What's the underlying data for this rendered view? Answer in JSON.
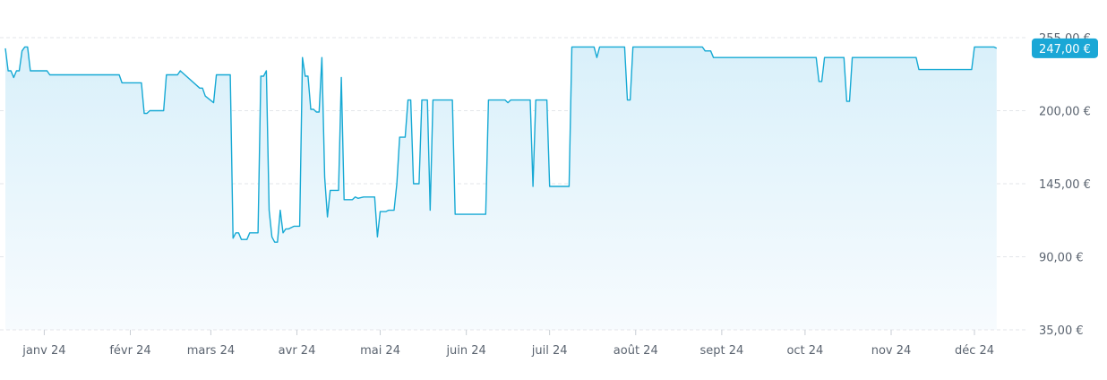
{
  "chart_data": {
    "type": "area",
    "currency": "€",
    "ylim": [
      35,
      255
    ],
    "yticks": [
      {
        "value": 255,
        "label": "255,00 €"
      },
      {
        "value": 200,
        "label": "200,00 €"
      },
      {
        "value": 145,
        "label": "145,00 €"
      },
      {
        "value": 90,
        "label": "90,00 €"
      },
      {
        "value": 35,
        "label": "35,00 €"
      }
    ],
    "xlim": [
      "2023-12-18",
      "2024-12-21"
    ],
    "xticks": [
      {
        "date": "2024-01-01",
        "label": "janv 24"
      },
      {
        "date": "2024-02-01",
        "label": "févr 24"
      },
      {
        "date": "2024-03-01",
        "label": "mars 24"
      },
      {
        "date": "2024-04-01",
        "label": "avr 24"
      },
      {
        "date": "2024-05-01",
        "label": "mai 24"
      },
      {
        "date": "2024-06-01",
        "label": "juin 24"
      },
      {
        "date": "2024-07-01",
        "label": "juil 24"
      },
      {
        "date": "2024-08-01",
        "label": "août 24"
      },
      {
        "date": "2024-09-01",
        "label": "sept 24"
      },
      {
        "date": "2024-10-01",
        "label": "oct 24"
      },
      {
        "date": "2024-11-01",
        "label": "nov 24"
      },
      {
        "date": "2024-12-01",
        "label": "déc 24"
      }
    ],
    "current_value_label": "247,00 €",
    "grid": true,
    "colors": {
      "line": "#16a9d4",
      "fill_top": "#d9f0fa",
      "fill_bottom": "#f7fbfe",
      "badge": "#1aa7d6",
      "grid": "#e3e6ea"
    },
    "series": [
      {
        "points": [
          [
            "2023-12-18",
            247
          ],
          [
            "2023-12-19",
            230
          ],
          [
            "2023-12-20",
            230
          ],
          [
            "2023-12-21",
            225
          ],
          [
            "2023-12-22",
            230
          ],
          [
            "2023-12-23",
            230
          ],
          [
            "2023-12-24",
            245
          ],
          [
            "2023-12-25",
            248
          ],
          [
            "2023-12-26",
            248
          ],
          [
            "2023-12-27",
            230
          ],
          [
            "2023-12-30",
            230
          ],
          [
            "2024-01-02",
            230
          ],
          [
            "2024-01-03",
            227
          ],
          [
            "2024-01-09",
            227
          ],
          [
            "2024-01-15",
            227
          ],
          [
            "2024-01-21",
            227
          ],
          [
            "2024-01-28",
            227
          ],
          [
            "2024-01-29",
            221
          ],
          [
            "2024-02-05",
            221
          ],
          [
            "2024-02-06",
            198
          ],
          [
            "2024-02-07",
            198
          ],
          [
            "2024-02-08",
            200
          ],
          [
            "2024-02-13",
            200
          ],
          [
            "2024-02-14",
            227
          ],
          [
            "2024-02-18",
            227
          ],
          [
            "2024-02-19",
            230
          ],
          [
            "2024-02-26",
            217
          ],
          [
            "2024-02-27",
            217
          ],
          [
            "2024-02-28",
            211
          ],
          [
            "2024-03-02",
            206
          ],
          [
            "2024-03-03",
            227
          ],
          [
            "2024-03-08",
            227
          ],
          [
            "2024-03-09",
            104
          ],
          [
            "2024-03-10",
            108
          ],
          [
            "2024-03-11",
            108
          ],
          [
            "2024-03-12",
            103
          ],
          [
            "2024-03-14",
            103
          ],
          [
            "2024-03-15",
            108
          ],
          [
            "2024-03-18",
            108
          ],
          [
            "2024-03-19",
            226
          ],
          [
            "2024-03-20",
            226
          ],
          [
            "2024-03-21",
            230
          ],
          [
            "2024-03-22",
            125
          ],
          [
            "2024-03-23",
            105
          ],
          [
            "2024-03-24",
            101
          ],
          [
            "2024-03-25",
            101
          ],
          [
            "2024-03-26",
            125
          ],
          [
            "2024-03-27",
            108
          ],
          [
            "2024-03-28",
            111
          ],
          [
            "2024-03-29",
            111
          ],
          [
            "2024-03-31",
            113
          ],
          [
            "2024-04-02",
            113
          ],
          [
            "2024-04-03",
            240
          ],
          [
            "2024-04-04",
            226
          ],
          [
            "2024-04-05",
            226
          ],
          [
            "2024-04-06",
            201
          ],
          [
            "2024-04-07",
            201
          ],
          [
            "2024-04-08",
            199
          ],
          [
            "2024-04-09",
            199
          ],
          [
            "2024-04-10",
            240
          ],
          [
            "2024-04-11",
            150
          ],
          [
            "2024-04-12",
            120
          ],
          [
            "2024-04-13",
            140
          ],
          [
            "2024-04-16",
            140
          ],
          [
            "2024-04-17",
            225
          ],
          [
            "2024-04-18",
            133
          ],
          [
            "2024-04-21",
            133
          ],
          [
            "2024-04-22",
            135
          ],
          [
            "2024-04-23",
            134
          ],
          [
            "2024-04-25",
            135
          ],
          [
            "2024-04-29",
            135
          ],
          [
            "2024-04-30",
            105
          ],
          [
            "2024-05-01",
            124
          ],
          [
            "2024-05-03",
            124
          ],
          [
            "2024-05-04",
            125
          ],
          [
            "2024-05-06",
            125
          ],
          [
            "2024-05-07",
            145
          ],
          [
            "2024-05-08",
            180
          ],
          [
            "2024-05-10",
            180
          ],
          [
            "2024-05-11",
            208
          ],
          [
            "2024-05-12",
            208
          ],
          [
            "2024-05-13",
            145
          ],
          [
            "2024-05-15",
            145
          ],
          [
            "2024-05-16",
            208
          ],
          [
            "2024-05-18",
            208
          ],
          [
            "2024-05-19",
            125
          ],
          [
            "2024-05-20",
            208
          ],
          [
            "2024-05-27",
            208
          ],
          [
            "2024-05-28",
            122
          ],
          [
            "2024-06-08",
            122
          ],
          [
            "2024-06-09",
            208
          ],
          [
            "2024-06-15",
            208
          ],
          [
            "2024-06-16",
            206
          ],
          [
            "2024-06-17",
            208
          ],
          [
            "2024-06-24",
            208
          ],
          [
            "2024-06-25",
            143
          ],
          [
            "2024-06-26",
            208
          ],
          [
            "2024-06-30",
            208
          ],
          [
            "2024-07-01",
            143
          ],
          [
            "2024-07-08",
            143
          ],
          [
            "2024-07-09",
            248
          ],
          [
            "2024-07-17",
            248
          ],
          [
            "2024-07-18",
            240
          ],
          [
            "2024-07-19",
            248
          ],
          [
            "2024-07-28",
            248
          ],
          [
            "2024-07-29",
            208
          ],
          [
            "2024-07-30",
            208
          ],
          [
            "2024-07-31",
            248
          ],
          [
            "2024-08-25",
            248
          ],
          [
            "2024-08-26",
            245
          ],
          [
            "2024-08-28",
            245
          ],
          [
            "2024-08-29",
            240
          ],
          [
            "2024-09-15",
            240
          ],
          [
            "2024-10-05",
            240
          ],
          [
            "2024-10-06",
            222
          ],
          [
            "2024-10-07",
            222
          ],
          [
            "2024-10-08",
            240
          ],
          [
            "2024-10-15",
            240
          ],
          [
            "2024-10-16",
            207
          ],
          [
            "2024-10-17",
            207
          ],
          [
            "2024-10-18",
            240
          ],
          [
            "2024-11-01",
            240
          ],
          [
            "2024-11-10",
            240
          ],
          [
            "2024-11-11",
            231
          ],
          [
            "2024-11-20",
            231
          ],
          [
            "2024-11-30",
            231
          ],
          [
            "2024-12-01",
            248
          ],
          [
            "2024-12-08",
            248
          ],
          [
            "2024-12-09",
            247
          ]
        ]
      }
    ]
  }
}
